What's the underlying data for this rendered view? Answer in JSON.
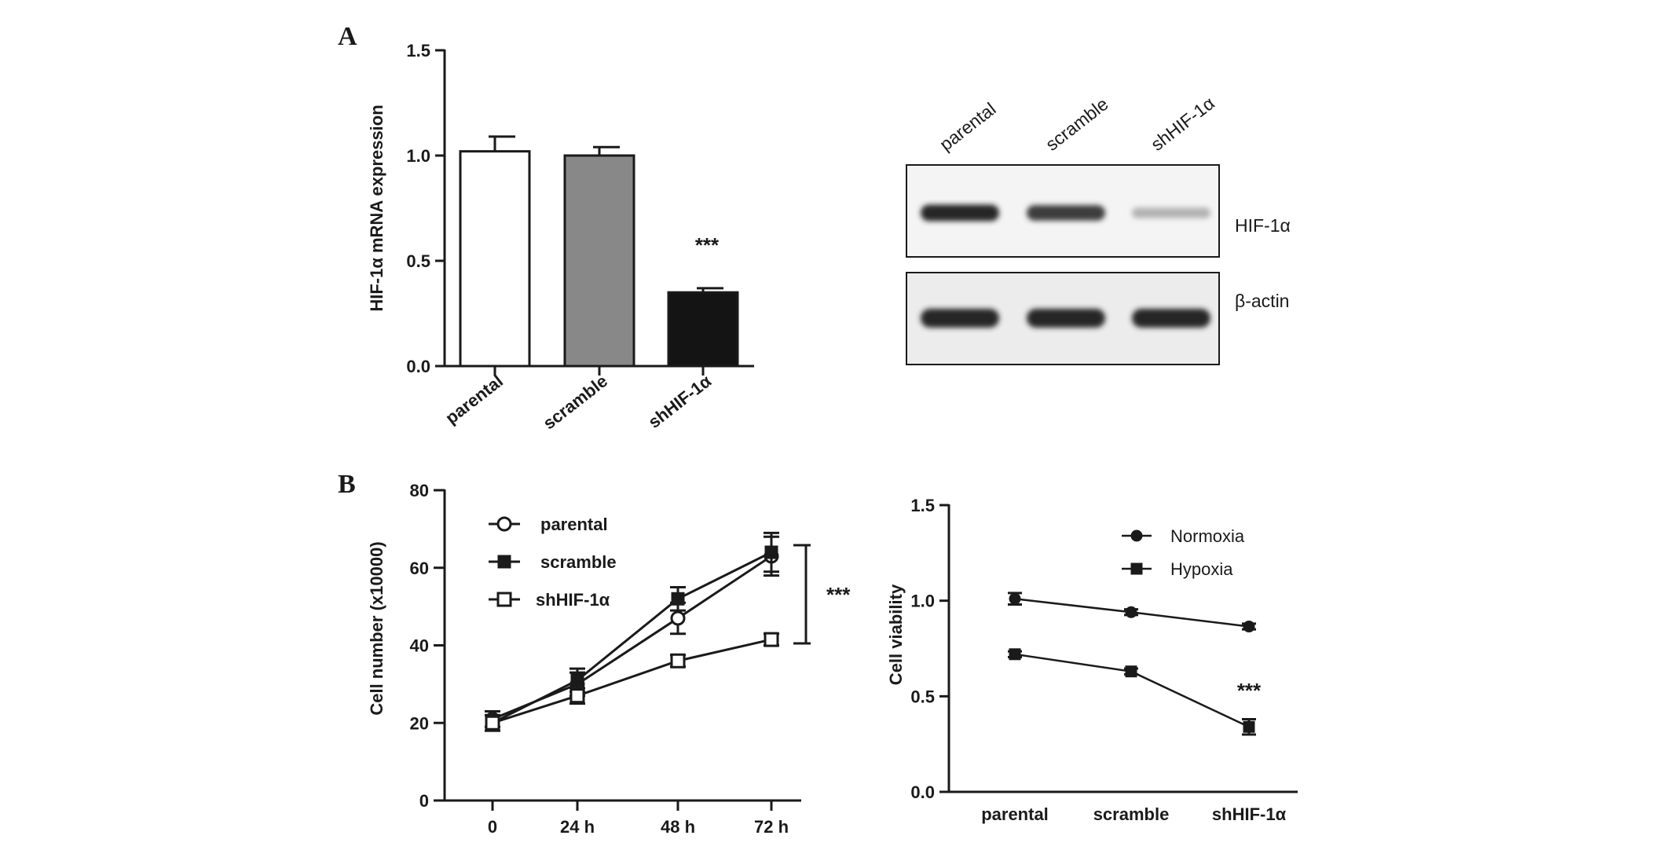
{
  "panels": {
    "a_label": "A",
    "b_label": "B"
  },
  "chart_data": [
    {
      "type": "bar",
      "ylabel": "HIF-1α mRNA expression",
      "xlabel": "",
      "ylim": [
        0,
        1.5
      ],
      "yticks": [
        "0.0",
        "0.5",
        "1.0",
        "1.5"
      ],
      "categories": [
        "parental",
        "scramble",
        "shHIF-1α"
      ],
      "values": [
        1.02,
        1.0,
        0.35
      ],
      "errors": [
        0.07,
        0.04,
        0.02
      ],
      "colors": [
        "#ffffff",
        "#888888",
        "#141414"
      ],
      "annotation": "***"
    },
    {
      "type": "line",
      "ylabel": "Cell number (x10000)",
      "xlabel": "",
      "ylim": [
        0,
        80
      ],
      "yticks": [
        "0",
        "20",
        "40",
        "60",
        "80"
      ],
      "categories": [
        "0",
        "24 h",
        "48 h",
        "72 h"
      ],
      "series": [
        {
          "name": "parental",
          "marker": "open-circle",
          "values": [
            21,
            30,
            47,
            63
          ],
          "errors": [
            2,
            3,
            4,
            5
          ]
        },
        {
          "name": "scramble",
          "marker": "filled-square",
          "values": [
            20,
            31,
            52,
            64
          ],
          "errors": [
            2,
            3,
            3,
            5
          ]
        },
        {
          "name": "shHIF-1α",
          "marker": "open-square",
          "values": [
            20,
            27,
            36,
            41.5
          ],
          "errors": [
            2,
            2,
            1.5,
            1.5
          ]
        }
      ],
      "legend_position": "top-left",
      "annotation": "***"
    },
    {
      "type": "line",
      "ylabel": "Cell viability",
      "xlabel": "",
      "ylim": [
        0,
        1.5
      ],
      "yticks": [
        "0.0",
        "0.5",
        "1.0",
        "1.5"
      ],
      "categories": [
        "parental",
        "scramble",
        "shHIF-1α"
      ],
      "series": [
        {
          "name": "Normoxia",
          "marker": "filled-circle",
          "values": [
            1.01,
            0.94,
            0.865
          ],
          "errors": [
            0.03,
            0.015,
            0.015
          ]
        },
        {
          "name": "Hypoxia",
          "marker": "filled-square",
          "values": [
            0.72,
            0.63,
            0.34
          ],
          "errors": [
            0.015,
            0.015,
            0.04
          ]
        }
      ],
      "legend_position": "top-right",
      "annotation": "***"
    }
  ],
  "blot": {
    "lanes": [
      "parental",
      "scramble",
      "shHIF-1α"
    ],
    "rows": [
      {
        "label": "HIF-1α",
        "intensities": [
          0.92,
          0.82,
          0.3
        ]
      },
      {
        "label": "β-actin",
        "intensities": [
          0.92,
          0.92,
          0.92
        ]
      }
    ]
  }
}
